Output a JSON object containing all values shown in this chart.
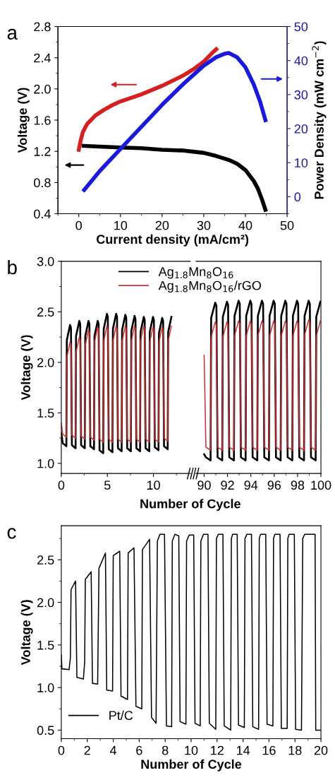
{
  "chart_data": [
    {
      "type": "line",
      "annotations": [
        "a"
      ],
      "xlabel": "Current density (mA/cm²)",
      "ylabel": "Voltage (V)",
      "y2label": "Power Density (mW cm$^{−2}$)",
      "xlim": [
        -5,
        50
      ],
      "xticks": [
        0,
        10,
        20,
        30,
        40,
        50
      ],
      "ylim": [
        0.4,
        2.8
      ],
      "yticks": [
        0.4,
        0.8,
        1.2,
        1.6,
        {
          "value": 2,
          "label": "2.0"
        },
        2.4,
        2.8
      ],
      "y2lim": [
        -5,
        50
      ],
      "y2ticks": [
        0,
        10,
        20,
        30,
        40,
        50
      ],
      "series": [
        {
          "color": "#d42020",
          "x": [
            0,
            0.5,
            1,
            2,
            4,
            6,
            8,
            10,
            15,
            20,
            25,
            28,
            30,
            32,
            33
          ],
          "values": [
            1.22,
            1.35,
            1.45,
            1.55,
            1.66,
            1.73,
            1.79,
            1.84,
            1.93,
            2.04,
            2.17,
            2.27,
            2.35,
            2.46,
            2.51
          ]
        },
        {
          "color": "#000000",
          "x": [
            1.2,
            5,
            10,
            15,
            20,
            25,
            30,
            33,
            36,
            38,
            40,
            42,
            43,
            44,
            44.8
          ],
          "values": [
            1.27,
            1.26,
            1.25,
            1.24,
            1.22,
            1.21,
            1.18,
            1.14,
            1.09,
            1.04,
            0.96,
            0.82,
            0.72,
            0.58,
            0.45
          ]
        },
        {
          "color": "#1a1adb",
          "axis": "y2",
          "x": [
            1.3,
            5,
            10,
            15,
            20,
            25,
            30,
            33,
            35,
            36,
            38,
            40,
            42,
            43.5,
            44.8
          ],
          "values": [
            2,
            7.5,
            14,
            20.5,
            27,
            33,
            38.5,
            41,
            42,
            42.2,
            41,
            38,
            33,
            28,
            22.5
          ]
        }
      ]
    },
    {
      "type": "line",
      "annotations": [
        "b"
      ],
      "xlabel": "Number of Cycle",
      "ylabel": "Voltage (V)",
      "legend": "top",
      "xlim": [
        0,
        14
      ],
      "xticks": [
        0,
        5,
        10
      ],
      "ylim": [
        0.9,
        3.0
      ],
      "yticks": [
        {
          "value": 1,
          "label": "1.0"
        },
        1.5,
        {
          "value": 2,
          "label": "2.0"
        },
        2.5,
        {
          "value": 3,
          "label": "3.0"
        }
      ],
      "x": [
        0,
        0.15,
        0.55,
        0.6,
        0.95,
        1.05,
        1.15,
        1.55,
        1.6,
        1.95,
        2.05,
        2.15,
        2.55,
        2.6,
        2.95,
        3.05,
        3.15,
        3.55,
        3.6,
        3.95,
        4.05,
        4.15,
        4.55,
        4.6,
        4.95,
        5.05,
        5.15,
        5.55,
        5.6,
        5.95,
        6.05,
        6.15,
        6.55,
        6.6,
        6.95,
        7.05,
        7.15,
        7.55,
        7.6,
        7.95,
        8.05,
        8.15,
        8.55,
        8.6,
        8.95,
        9.05,
        9.15,
        9.55,
        9.6,
        9.95,
        10.05,
        10.15,
        10.55,
        10.6,
        10.95,
        11.05,
        11.15,
        11.55,
        11.6,
        11.95
      ],
      "series": [
        {
          "name": "Ag$_{1.8}$Mn$_{8}$O$_{16}$",
          "color": "#000000",
          "values": [
            1.3,
            1.2,
            1.17,
            2.22,
            2.37,
            2.34,
            1.18,
            1.15,
            2.26,
            2.41,
            2.38,
            1.18,
            1.15,
            2.26,
            2.41,
            2.38,
            1.17,
            1.14,
            2.26,
            2.41,
            2.38,
            1.13,
            1.1,
            2.33,
            2.48,
            2.45,
            1.14,
            1.11,
            2.33,
            2.48,
            2.45,
            1.15,
            1.12,
            2.32,
            2.47,
            2.44,
            1.15,
            1.12,
            2.31,
            2.46,
            2.43,
            1.15,
            1.12,
            2.3,
            2.45,
            2.42,
            1.15,
            1.12,
            2.3,
            2.45,
            2.42,
            1.16,
            1.13,
            2.29,
            2.44,
            2.41,
            1.17,
            1.14,
            2.3,
            2.45
          ]
        },
        {
          "name": "Ag$_{1.8}$Mn$_{8}$O$_{16}$/rGO",
          "color": "#d03030",
          "values": [
            1.4,
            1.29,
            1.26,
            2.05,
            2.2,
            2.17,
            1.28,
            1.25,
            2.1,
            2.25,
            2.22,
            1.27,
            1.24,
            2.17,
            2.32,
            2.29,
            1.26,
            1.23,
            2.2,
            2.35,
            2.32,
            1.24,
            1.21,
            2.21,
            2.36,
            2.33,
            1.24,
            1.21,
            2.21,
            2.36,
            2.33,
            1.24,
            1.21,
            2.21,
            2.36,
            2.33,
            1.24,
            1.21,
            2.21,
            2.36,
            2.33,
            1.24,
            1.21,
            2.21,
            2.36,
            2.33,
            1.24,
            1.21,
            2.2,
            2.35,
            2.32,
            1.24,
            1.21,
            2.2,
            2.35,
            2.32,
            1.25,
            1.22,
            2.21,
            2.36
          ]
        }
      ]
    },
    {
      "type": "line",
      "tick_labels": "x",
      "xlim": [
        89.3,
        100
      ],
      "xticks": [
        90,
        92,
        94,
        96,
        98,
        100
      ],
      "ylim": [
        0.9,
        3.0
      ],
      "yticks": [
        1,
        1.5,
        2,
        2.5,
        3
      ],
      "x": [
        90,
        90.15,
        90.55,
        90.6,
        90.95,
        91.05,
        91.15,
        91.55,
        91.6,
        91.95,
        92.05,
        92.15,
        92.55,
        92.6,
        92.95,
        93.05,
        93.15,
        93.55,
        93.6,
        93.95,
        94.05,
        94.15,
        94.55,
        94.6,
        94.95,
        95.05,
        95.15,
        95.55,
        95.6,
        95.95,
        96.05,
        96.15,
        96.55,
        96.6,
        96.95,
        97.05,
        97.15,
        97.55,
        97.6,
        97.95,
        98.05,
        98.15,
        98.55,
        98.6,
        98.95,
        99.05,
        99.15,
        99.55,
        99.6,
        99.95
      ],
      "series": [
        {
          "color": "#000000",
          "values": [
            1.09,
            1.06,
            1.03,
            2.44,
            2.59,
            2.56,
            1.06,
            1.03,
            2.45,
            2.6,
            2.57,
            1.06,
            1.03,
            2.46,
            2.61,
            2.58,
            1.06,
            1.03,
            2.46,
            2.61,
            2.58,
            1.06,
            1.03,
            2.46,
            2.61,
            2.58,
            1.06,
            1.03,
            2.46,
            2.61,
            2.58,
            1.06,
            1.03,
            2.46,
            2.61,
            2.58,
            1.06,
            1.03,
            2.46,
            2.61,
            2.58,
            1.06,
            1.03,
            2.46,
            2.61,
            2.58,
            1.06,
            1.03,
            2.45,
            2.6
          ]
        },
        {
          "color": "#d03030",
          "values": [
            2.07,
            1.16,
            1.13,
            2.25,
            2.4,
            2.37,
            1.16,
            1.13,
            2.25,
            2.4,
            2.37,
            1.16,
            1.13,
            2.26,
            2.41,
            2.38,
            1.16,
            1.13,
            2.26,
            2.41,
            2.38,
            1.16,
            1.13,
            2.26,
            2.41,
            2.38,
            1.16,
            1.13,
            2.26,
            2.41,
            2.38,
            1.16,
            1.13,
            2.26,
            2.41,
            2.38,
            1.16,
            1.13,
            2.26,
            2.41,
            2.38,
            1.16,
            1.13,
            2.27,
            2.42,
            2.39,
            1.16,
            1.13,
            2.26,
            2.41
          ]
        }
      ]
    },
    {
      "type": "line",
      "annotations": [
        "c"
      ],
      "xlabel": "Number of Cycle",
      "ylabel": "Voltage (V)",
      "legend": "bottom left",
      "xlim": [
        0,
        20
      ],
      "xticks": [
        0,
        2,
        4,
        6,
        8,
        10,
        12,
        14,
        16,
        18,
        20
      ],
      "ylim": [
        0.4,
        2.9
      ],
      "yticks": [
        0.5,
        {
          "value": 1,
          "label": "1.0"
        },
        1.5,
        {
          "value": 2,
          "label": "2.0"
        },
        2.5
      ],
      "x": [
        0,
        0.05,
        0.6,
        0.7,
        0.75,
        1.1,
        1.2,
        1.7,
        1.8,
        1.85,
        2.3,
        2.4,
        2.8,
        2.9,
        3.4,
        3.5,
        3.95,
        4.0,
        4.5,
        4.6,
        5.1,
        5.15,
        5.6,
        5.75,
        6.2,
        6.25,
        6.8,
        6.95,
        7.3,
        7.4,
        7.6,
        7.95,
        8.1,
        8.5,
        8.55,
        8.75,
        9.05,
        9.15,
        9.6,
        9.65,
        9.85,
        10.2,
        10.3,
        10.7,
        10.75,
        10.95,
        11.3,
        11.4,
        11.9,
        11.95,
        12.1,
        12.45,
        12.55,
        13.05,
        13.1,
        13.2,
        13.55,
        13.65,
        14.1,
        14.15,
        14.3,
        14.65,
        14.75,
        15.2,
        15.25,
        15.35,
        15.75,
        15.85,
        16.3,
        16.35,
        16.45,
        16.85,
        16.95,
        17.4,
        17.45,
        17.55,
        17.95,
        18.05,
        18.5,
        18.6,
        18.75,
        19.55,
        19.6,
        20
      ],
      "series": [
        {
          "name": "Pt/C",
          "color": "#000000",
          "values": [
            1.38,
            1.22,
            1.21,
            1.35,
            2.15,
            2.25,
            1.12,
            1.1,
            1.3,
            2.27,
            2.36,
            1.05,
            1.04,
            2.4,
            2.58,
            0.97,
            0.96,
            2.55,
            2.6,
            0.9,
            0.86,
            2.58,
            2.64,
            0.78,
            0.75,
            2.62,
            2.74,
            0.65,
            0.58,
            2.72,
            2.8,
            2.8,
            0.55,
            0.54,
            2.72,
            2.8,
            2.78,
            0.6,
            0.57,
            2.72,
            2.79,
            2.79,
            0.58,
            0.55,
            2.72,
            2.8,
            2.8,
            0.58,
            0.51,
            2.75,
            2.8,
            2.8,
            0.55,
            0.5,
            2.75,
            2.8,
            2.8,
            0.56,
            0.53,
            2.75,
            2.8,
            2.8,
            0.54,
            0.51,
            2.75,
            2.8,
            2.8,
            0.57,
            0.55,
            2.75,
            2.8,
            2.8,
            0.52,
            0.52,
            2.75,
            2.8,
            2.8,
            0.51,
            0.5,
            2.75,
            2.8,
            2.8,
            0.5,
            0.5
          ]
        }
      ]
    }
  ]
}
